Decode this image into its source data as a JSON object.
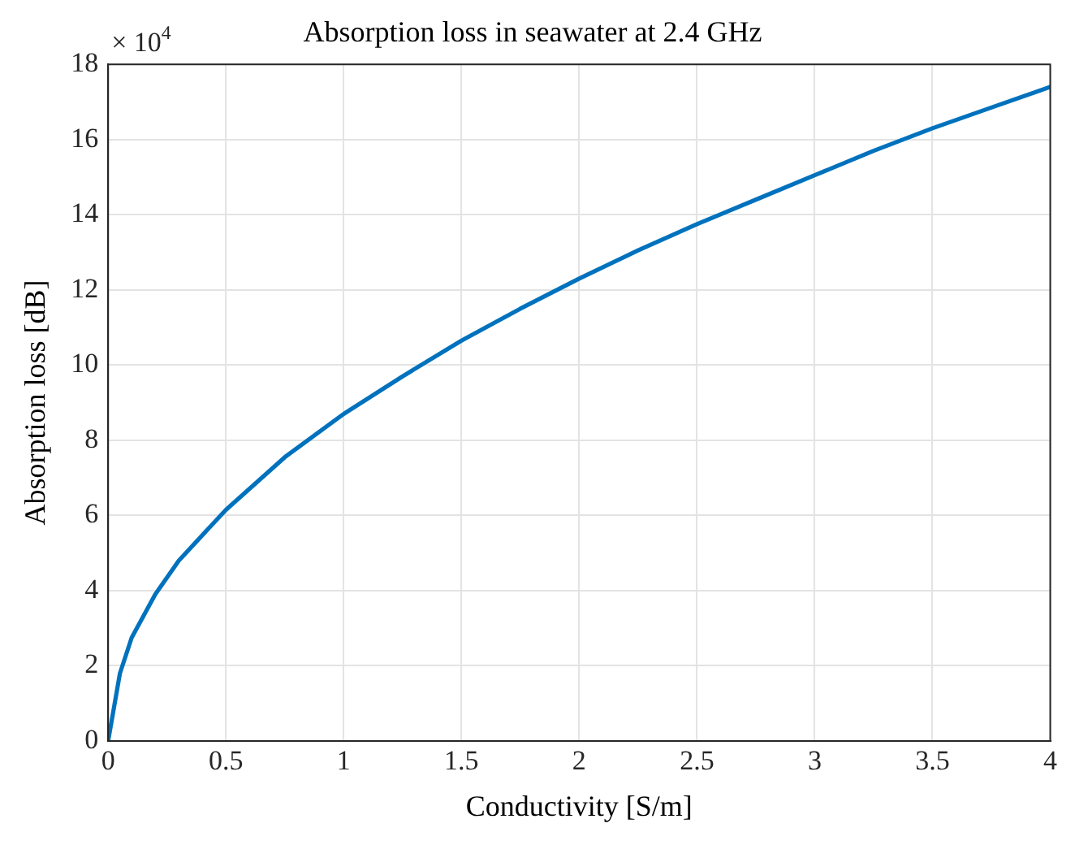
{
  "chart_data": {
    "type": "line",
    "title": "Absorption loss in seawater at 2.4 GHz",
    "xlabel": "Conductivity [S/m]",
    "ylabel": "Absorption loss [dB]",
    "annotations": [
      "× 10$^{4}$"
    ],
    "series": [
      {
        "color": "#0072bd",
        "x": [
          0,
          0.05,
          0.1,
          0.2,
          0.3,
          0.5,
          0.75,
          1,
          1.25,
          1.5,
          1.75,
          2,
          2.25,
          2.5,
          2.75,
          3,
          3.25,
          3.5,
          3.75,
          4
        ],
        "values": [
          0,
          1.8,
          2.75,
          3.9,
          4.8,
          6.15,
          7.55,
          8.7,
          9.7,
          10.65,
          11.5,
          12.3,
          13.05,
          13.75,
          14.4,
          15.05,
          15.7,
          16.3,
          16.85,
          17.4
        ]
      }
    ],
    "xlim": [
      0,
      4
    ],
    "xticks": [
      0,
      0.5,
      1,
      1.5,
      2,
      2.5,
      3,
      3.5,
      4
    ],
    "ylim": [
      0,
      18
    ],
    "yticks": [
      0,
      2,
      4,
      6,
      8,
      10,
      12,
      14,
      16,
      18
    ],
    "grid": true,
    "legend": false,
    "marker": "none",
    "line_style": "solid"
  }
}
